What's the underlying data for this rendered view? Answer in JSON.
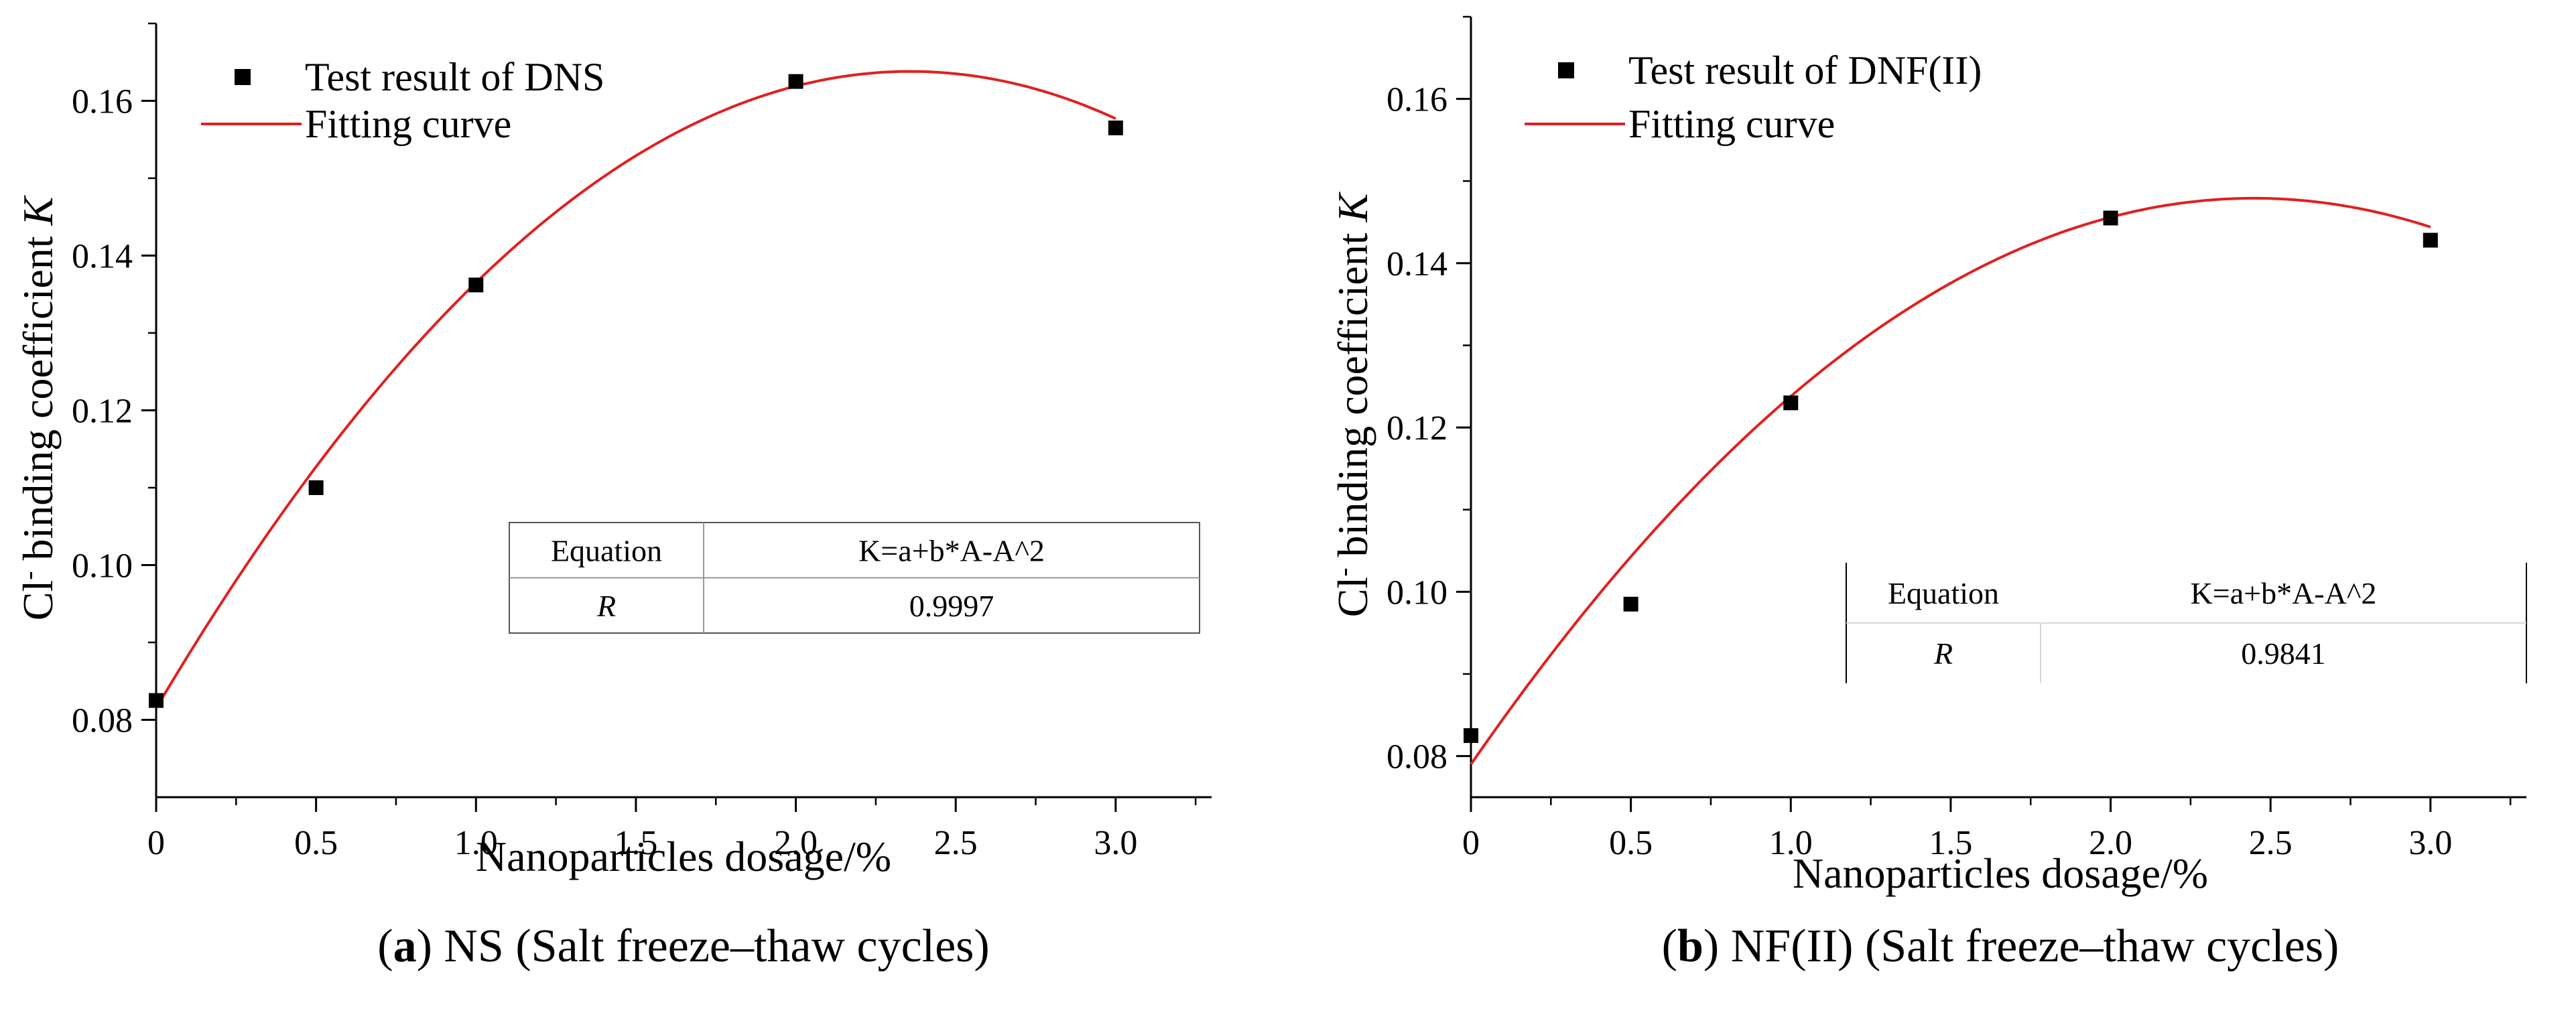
{
  "chart_data": [
    {
      "type": "scatter",
      "panel_label": "a",
      "caption": "NS (Salt freeze–thaw cycles)",
      "xlabel": "Nanoparticles dosage/%",
      "ylabel_prefix": "Cl",
      "ylabel_sup": "-",
      "ylabel_main": " binding coefficient ",
      "ylabel_var": "K",
      "xlim": [
        0,
        3.3
      ],
      "ylim": [
        0.07,
        0.17
      ],
      "xticks": [
        "0",
        "0.5",
        "1.0",
        "1.5",
        "2.0",
        "2.5",
        "3.0"
      ],
      "yticks": [
        "0.08",
        "0.10",
        "0.12",
        "0.14",
        "0.16"
      ],
      "series": [
        {
          "name": "Test result of DNS",
          "kind": "scatter",
          "x": [
            0,
            0.5,
            1.0,
            2.0,
            3.0
          ],
          "y": [
            0.0825,
            0.11,
            0.1362,
            0.1625,
            0.1565
          ]
        },
        {
          "name": "Fitting curve",
          "kind": "line",
          "color": "#e02020",
          "x_range": [
            0,
            3.0
          ],
          "coef": [
            0.0815,
            0.0698,
            -0.0148
          ]
        }
      ],
      "table": {
        "rows": [
          [
            "Equation",
            "K=a+b*A-A^2"
          ],
          [
            "R",
            "0.9997"
          ]
        ]
      }
    },
    {
      "type": "scatter",
      "panel_label": "b",
      "caption": "NF(II) (Salt freeze–thaw cycles)",
      "xlabel": "Nanoparticles dosage/%",
      "ylabel_prefix": "Cl",
      "ylabel_sup": "-",
      "ylabel_main": " binding coefficient ",
      "ylabel_var": "K",
      "xlim": [
        0,
        3.3
      ],
      "ylim": [
        0.075,
        0.17
      ],
      "xticks": [
        "0",
        "0.5",
        "1.0",
        "1.5",
        "2.0",
        "2.5",
        "3.0"
      ],
      "yticks": [
        "0.08",
        "0.10",
        "0.12",
        "0.14",
        "0.16"
      ],
      "series": [
        {
          "name": "Test result of DNF(II)",
          "kind": "scatter",
          "x": [
            0,
            0.5,
            1.0,
            2.0,
            3.0
          ],
          "y": [
            0.0825,
            0.0985,
            0.123,
            0.1455,
            0.1428
          ]
        },
        {
          "name": "Fitting curve",
          "kind": "line",
          "color": "#e02020",
          "x_range": [
            0,
            3.0
          ],
          "coef": [
            0.079,
            0.0563,
            -0.0115
          ]
        }
      ],
      "table": {
        "rows": [
          [
            "Equation",
            "K=a+b*A-A^2"
          ],
          [
            "R",
            "0.9841"
          ]
        ]
      }
    }
  ]
}
